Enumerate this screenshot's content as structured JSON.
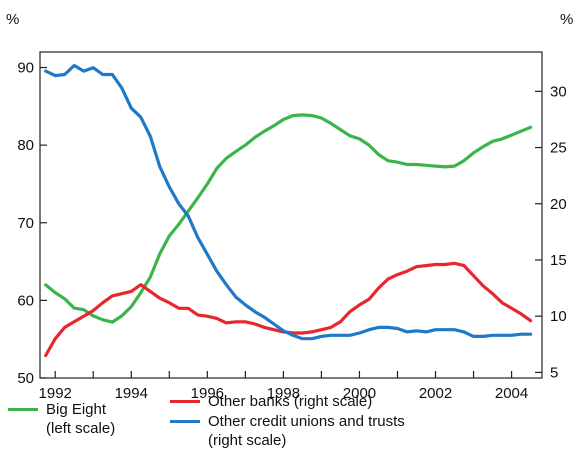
{
  "chart_data": {
    "type": "line",
    "left_unit": "%",
    "right_unit": "%",
    "x_ticks": [
      "1992",
      "1994",
      "1996",
      "1998",
      "2000",
      "2002",
      "2004"
    ],
    "x_range": [
      1991.6,
      2004.8
    ],
    "left_axis": {
      "ylim": [
        50,
        92
      ],
      "ticks": [
        "50",
        "60",
        "70",
        "80",
        "90"
      ]
    },
    "right_axis": {
      "ylim": [
        4.5,
        33.5
      ],
      "ticks": [
        "5",
        "10",
        "15",
        "20",
        "25",
        "30"
      ]
    },
    "series": [
      {
        "name": "Big Eight",
        "name_line2": "(left scale)",
        "axis": "left",
        "color": "#3cb44b",
        "x": [
          1991.75,
          1992.0,
          1992.25,
          1992.5,
          1992.75,
          1993.0,
          1993.25,
          1993.5,
          1993.75,
          1994.0,
          1994.25,
          1994.5,
          1994.75,
          1995.0,
          1995.25,
          1995.5,
          1995.75,
          1996.0,
          1996.25,
          1996.5,
          1996.75,
          1997.0,
          1997.25,
          1997.5,
          1997.75,
          1998.0,
          1998.25,
          1998.5,
          1998.75,
          1999.0,
          1999.25,
          1999.5,
          1999.75,
          2000.0,
          2000.25,
          2000.5,
          2000.75,
          2001.0,
          2001.25,
          2001.5,
          2001.75,
          2002.0,
          2002.25,
          2002.5,
          2002.75,
          2003.0,
          2003.25,
          2003.5,
          2003.75,
          2004.0,
          2004.25,
          2004.5
        ],
        "values": [
          62.0,
          61.0,
          60.2,
          59.0,
          58.8,
          58.0,
          57.5,
          57.2,
          58.0,
          59.2,
          61.0,
          63.0,
          66.0,
          68.3,
          69.8,
          71.5,
          73.2,
          75.0,
          77.0,
          78.3,
          79.2,
          80.0,
          81.0,
          81.8,
          82.5,
          83.3,
          83.8,
          83.9,
          83.8,
          83.5,
          82.8,
          82.0,
          81.2,
          80.8,
          80.0,
          78.8,
          78.0,
          77.8,
          77.5,
          77.5,
          77.4,
          77.3,
          77.2,
          77.3,
          78.0,
          79.0,
          79.8,
          80.5,
          80.8,
          81.3,
          81.8,
          82.3
        ]
      },
      {
        "name": "Other banks (right scale)",
        "axis": "right",
        "color": "#e8262d",
        "x": [
          1991.75,
          1992.0,
          1992.25,
          1992.5,
          1992.75,
          1993.0,
          1993.25,
          1993.5,
          1993.75,
          1994.0,
          1994.25,
          1994.5,
          1994.75,
          1995.0,
          1995.25,
          1995.5,
          1995.75,
          1996.0,
          1996.25,
          1996.5,
          1996.75,
          1997.0,
          1997.25,
          1997.5,
          1997.75,
          1998.0,
          1998.25,
          1998.5,
          1998.75,
          1999.0,
          1999.25,
          1999.5,
          1999.75,
          2000.0,
          2000.25,
          2000.5,
          2000.75,
          2001.0,
          2001.25,
          2001.5,
          2001.75,
          2002.0,
          2002.25,
          2002.5,
          2002.75,
          2003.0,
          2003.25,
          2003.5,
          2003.75,
          2004.0,
          2004.25,
          2004.5
        ],
        "values": [
          6.5,
          8.0,
          9.0,
          9.5,
          10.0,
          10.5,
          11.2,
          11.8,
          12.0,
          12.2,
          12.8,
          12.2,
          11.6,
          11.2,
          10.7,
          10.7,
          10.1,
          10.0,
          9.8,
          9.4,
          9.5,
          9.5,
          9.3,
          9.0,
          8.8,
          8.6,
          8.5,
          8.5,
          8.6,
          8.8,
          9.0,
          9.5,
          10.4,
          11.0,
          11.5,
          12.5,
          13.3,
          13.7,
          14.0,
          14.4,
          14.5,
          14.6,
          14.6,
          14.7,
          14.5,
          13.6,
          12.7,
          12.0,
          11.2,
          10.7,
          10.2,
          9.6
        ]
      },
      {
        "name": "Other credit unions and trusts",
        "name_line2": "(right scale)",
        "axis": "right",
        "color": "#1f78c8",
        "x": [
          1991.75,
          1992.0,
          1992.25,
          1992.5,
          1992.75,
          1993.0,
          1993.25,
          1993.5,
          1993.75,
          1994.0,
          1994.25,
          1994.5,
          1994.75,
          1995.0,
          1995.25,
          1995.5,
          1995.75,
          1996.0,
          1996.25,
          1996.5,
          1996.75,
          1997.0,
          1997.25,
          1997.5,
          1997.75,
          1998.0,
          1998.25,
          1998.5,
          1998.75,
          1999.0,
          1999.25,
          1999.5,
          1999.75,
          2000.0,
          2000.25,
          2000.5,
          2000.75,
          2001.0,
          2001.25,
          2001.5,
          2001.75,
          2002.0,
          2002.25,
          2002.5,
          2002.75,
          2003.0,
          2003.25,
          2003.5,
          2003.75,
          2004.0,
          2004.25,
          2004.5
        ],
        "values": [
          31.8,
          31.4,
          31.5,
          32.3,
          31.8,
          32.1,
          31.5,
          31.5,
          30.3,
          28.5,
          27.7,
          26.0,
          23.3,
          21.5,
          20.0,
          18.9,
          17.0,
          15.5,
          14.0,
          12.8,
          11.7,
          11.0,
          10.4,
          9.9,
          9.3,
          8.7,
          8.3,
          8.0,
          8.0,
          8.2,
          8.3,
          8.3,
          8.3,
          8.5,
          8.8,
          9.0,
          9.0,
          8.9,
          8.6,
          8.7,
          8.6,
          8.8,
          8.8,
          8.8,
          8.6,
          8.2,
          8.2,
          8.3,
          8.3,
          8.3,
          8.4,
          8.4
        ]
      }
    ]
  }
}
